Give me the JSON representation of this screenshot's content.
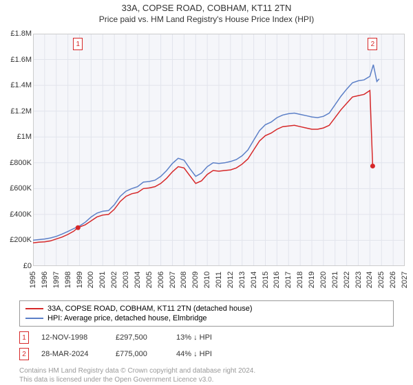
{
  "title": "33A, COPSE ROAD, COBHAM, KT11 2TN",
  "subtitle": "Price paid vs. HM Land Registry's House Price Index (HPI)",
  "chart": {
    "type": "line",
    "background_color": "#f5f6fa",
    "grid_color": "#e2e4ec",
    "border_color": "#cccccc",
    "ylim": [
      0,
      1800000
    ],
    "ytick_step": 200000,
    "y_labels": [
      "£0",
      "£200K",
      "£400K",
      "£600K",
      "£800K",
      "£1M",
      "£1.2M",
      "£1.4M",
      "£1.6M",
      "£1.8M"
    ],
    "xlim": [
      1995,
      2027
    ],
    "x_labels": [
      "1995",
      "1996",
      "1997",
      "1998",
      "1999",
      "2000",
      "2001",
      "2002",
      "2003",
      "2004",
      "2005",
      "2006",
      "2007",
      "2008",
      "2009",
      "2010",
      "2011",
      "2012",
      "2013",
      "2014",
      "2015",
      "2016",
      "2017",
      "2018",
      "2019",
      "2020",
      "2021",
      "2022",
      "2023",
      "2024",
      "2025",
      "2026",
      "2027"
    ],
    "series": [
      {
        "name": "property",
        "label": "33A, COPSE ROAD, COBHAM, KT11 2TN (detached house)",
        "color": "#d62728",
        "line_width": 1.5,
        "points": [
          [
            1995.0,
            180000
          ],
          [
            1995.5,
            185000
          ],
          [
            1996.0,
            188000
          ],
          [
            1996.5,
            195000
          ],
          [
            1997.0,
            210000
          ],
          [
            1997.5,
            225000
          ],
          [
            1998.0,
            245000
          ],
          [
            1998.5,
            270000
          ],
          [
            1998.87,
            297500
          ],
          [
            1999.5,
            320000
          ],
          [
            2000.0,
            350000
          ],
          [
            2000.5,
            380000
          ],
          [
            2001.0,
            395000
          ],
          [
            2001.5,
            400000
          ],
          [
            2002.0,
            440000
          ],
          [
            2002.5,
            500000
          ],
          [
            2003.0,
            540000
          ],
          [
            2003.5,
            560000
          ],
          [
            2004.0,
            570000
          ],
          [
            2004.5,
            600000
          ],
          [
            2005.0,
            605000
          ],
          [
            2005.5,
            615000
          ],
          [
            2006.0,
            640000
          ],
          [
            2006.5,
            680000
          ],
          [
            2007.0,
            730000
          ],
          [
            2007.5,
            770000
          ],
          [
            2008.0,
            760000
          ],
          [
            2008.5,
            700000
          ],
          [
            2009.0,
            640000
          ],
          [
            2009.5,
            660000
          ],
          [
            2010.0,
            710000
          ],
          [
            2010.5,
            740000
          ],
          [
            2011.0,
            735000
          ],
          [
            2011.5,
            740000
          ],
          [
            2012.0,
            745000
          ],
          [
            2012.5,
            760000
          ],
          [
            2013.0,
            790000
          ],
          [
            2013.5,
            830000
          ],
          [
            2014.0,
            900000
          ],
          [
            2014.5,
            970000
          ],
          [
            2015.0,
            1010000
          ],
          [
            2015.5,
            1030000
          ],
          [
            2016.0,
            1060000
          ],
          [
            2016.5,
            1080000
          ],
          [
            2017.0,
            1085000
          ],
          [
            2017.5,
            1090000
          ],
          [
            2018.0,
            1080000
          ],
          [
            2018.5,
            1070000
          ],
          [
            2019.0,
            1060000
          ],
          [
            2019.5,
            1060000
          ],
          [
            2020.0,
            1070000
          ],
          [
            2020.5,
            1090000
          ],
          [
            2021.0,
            1150000
          ],
          [
            2021.5,
            1210000
          ],
          [
            2022.0,
            1260000
          ],
          [
            2022.5,
            1310000
          ],
          [
            2023.0,
            1320000
          ],
          [
            2023.5,
            1330000
          ],
          [
            2024.0,
            1360000
          ],
          [
            2024.24,
            775000
          ]
        ]
      },
      {
        "name": "hpi",
        "label": "HPI: Average price, detached house, Elmbridge",
        "color": "#5b7fc7",
        "line_width": 1.5,
        "points": [
          [
            1995.0,
            200000
          ],
          [
            1995.5,
            205000
          ],
          [
            1996.0,
            210000
          ],
          [
            1996.5,
            218000
          ],
          [
            1997.0,
            230000
          ],
          [
            1997.5,
            248000
          ],
          [
            1998.0,
            268000
          ],
          [
            1998.5,
            290000
          ],
          [
            1999.0,
            310000
          ],
          [
            1999.5,
            340000
          ],
          [
            2000.0,
            380000
          ],
          [
            2000.5,
            410000
          ],
          [
            2001.0,
            425000
          ],
          [
            2001.5,
            430000
          ],
          [
            2002.0,
            475000
          ],
          [
            2002.5,
            540000
          ],
          [
            2003.0,
            580000
          ],
          [
            2003.5,
            600000
          ],
          [
            2004.0,
            615000
          ],
          [
            2004.5,
            650000
          ],
          [
            2005.0,
            655000
          ],
          [
            2005.5,
            665000
          ],
          [
            2006.0,
            695000
          ],
          [
            2006.5,
            740000
          ],
          [
            2007.0,
            795000
          ],
          [
            2007.5,
            835000
          ],
          [
            2008.0,
            820000
          ],
          [
            2008.5,
            755000
          ],
          [
            2009.0,
            695000
          ],
          [
            2009.5,
            720000
          ],
          [
            2010.0,
            770000
          ],
          [
            2010.5,
            800000
          ],
          [
            2011.0,
            795000
          ],
          [
            2011.5,
            800000
          ],
          [
            2012.0,
            810000
          ],
          [
            2012.5,
            825000
          ],
          [
            2013.0,
            855000
          ],
          [
            2013.5,
            900000
          ],
          [
            2014.0,
            975000
          ],
          [
            2014.5,
            1050000
          ],
          [
            2015.0,
            1095000
          ],
          [
            2015.5,
            1115000
          ],
          [
            2016.0,
            1150000
          ],
          [
            2016.5,
            1170000
          ],
          [
            2017.0,
            1180000
          ],
          [
            2017.5,
            1185000
          ],
          [
            2018.0,
            1175000
          ],
          [
            2018.5,
            1165000
          ],
          [
            2019.0,
            1155000
          ],
          [
            2019.5,
            1150000
          ],
          [
            2020.0,
            1160000
          ],
          [
            2020.5,
            1185000
          ],
          [
            2021.0,
            1250000
          ],
          [
            2021.5,
            1315000
          ],
          [
            2022.0,
            1370000
          ],
          [
            2022.5,
            1420000
          ],
          [
            2023.0,
            1435000
          ],
          [
            2023.5,
            1442000
          ],
          [
            2024.0,
            1470000
          ],
          [
            2024.3,
            1560000
          ],
          [
            2024.6,
            1430000
          ],
          [
            2024.8,
            1450000
          ]
        ]
      }
    ],
    "markers": [
      {
        "id": 1,
        "x": 1998.87,
        "y": 297500,
        "color": "#d62728",
        "label": "1"
      },
      {
        "id": 2,
        "x": 2024.24,
        "y": 775000,
        "color": "#d62728",
        "label": "2"
      }
    ]
  },
  "legend": {
    "items": [
      {
        "color": "#d62728",
        "label": "33A, COPSE ROAD, COBHAM, KT11 2TN (detached house)"
      },
      {
        "color": "#5b7fc7",
        "label": "HPI: Average price, detached house, Elmbridge"
      }
    ]
  },
  "transactions": [
    {
      "marker": "1",
      "marker_color": "#d62728",
      "date": "12-NOV-1998",
      "price": "£297,500",
      "diff": "13% ↓ HPI"
    },
    {
      "marker": "2",
      "marker_color": "#d62728",
      "date": "28-MAR-2024",
      "price": "£775,000",
      "diff": "44% ↓ HPI"
    }
  ],
  "footer": {
    "line1": "Contains HM Land Registry data © Crown copyright and database right 2024.",
    "line2": "This data is licensed under the Open Government Licence v3.0."
  }
}
